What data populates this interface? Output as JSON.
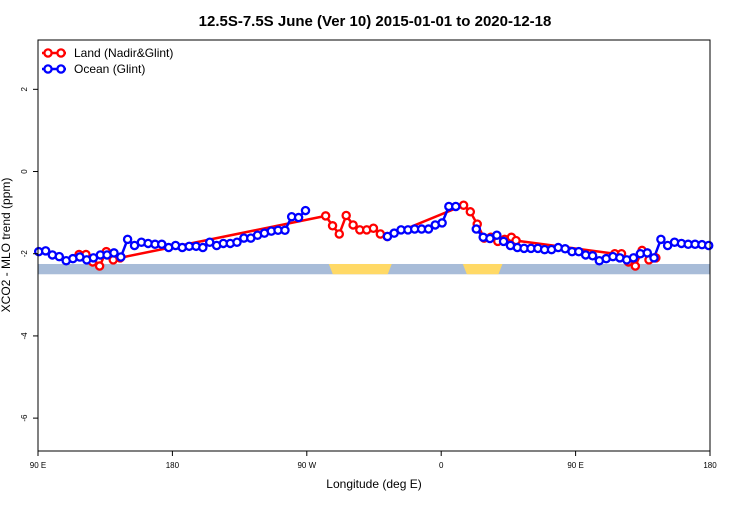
{
  "chart_data": {
    "type": "line",
    "title": "12.5S-7.5S June (Ver 10)   2015-01-01 to 2020-12-18",
    "xlabel": "Longitude (deg E)",
    "ylabel": "XCO2 - MLO trend (ppm)",
    "xlim": [
      90,
      450
    ],
    "ylim": [
      -6.8,
      3.2
    ],
    "x_ticks": [
      {
        "value": 90,
        "label": "90 E"
      },
      {
        "value": 162,
        "label": "180"
      },
      {
        "value": 234,
        "label": "90 W"
      },
      {
        "value": 306,
        "label": "0"
      },
      {
        "value": 378,
        "label": "90 E"
      },
      {
        "value": 450,
        "label": "180"
      }
    ],
    "y_ticks": [
      {
        "value": 2,
        "label": "2"
      },
      {
        "value": 0,
        "label": "0"
      },
      {
        "value": -2,
        "label": "-2"
      },
      {
        "value": -4,
        "label": "-4"
      },
      {
        "value": -6,
        "label": "-6"
      }
    ],
    "grid": false,
    "legend": "top-left",
    "surface_band": {
      "y_top": -2.25,
      "y_bottom": -2.5,
      "ocean_color": "#a8bcd8",
      "land_color": "#ffd966",
      "land_ranges": [
        [
          245.8,
          279.5
        ],
        [
          317.6,
          338.8
        ]
      ]
    },
    "series": [
      {
        "name": "Land (Nadir&Glint)",
        "color": "#ff0000",
        "x": [
          112,
          115.7,
          119.3,
          123,
          126.6,
          130.3,
          134,
          244.1,
          247.8,
          251.4,
          255.1,
          258.8,
          262.4,
          266.1,
          269.7,
          273.4,
          277.1,
          318,
          321.6,
          325.3,
          329,
          332.6,
          336.3,
          340,
          343.6,
          346.1,
          399,
          402.6,
          406.3,
          410,
          413.6,
          417.3,
          421
        ],
        "y": [
          -2.02,
          -2.02,
          -2.2,
          -2.3,
          -1.95,
          -2.15,
          -2.1,
          -1.08,
          -1.32,
          -1.52,
          -1.07,
          -1.3,
          -1.42,
          -1.42,
          -1.38,
          -1.52,
          -1.58,
          -0.82,
          -0.98,
          -1.28,
          -1.62,
          -1.6,
          -1.7,
          -1.65,
          -1.6,
          -1.68,
          -2.0,
          -2.0,
          -2.2,
          -2.3,
          -1.92,
          -2.15,
          -2.1
        ]
      },
      {
        "name": "Ocean (Glint)",
        "color": "#0000ff",
        "x": [
          90.4,
          94.1,
          97.7,
          101.4,
          105.1,
          108.7,
          112.4,
          116.1,
          119.7,
          123.4,
          127,
          130.7,
          134.4,
          138,
          141.7,
          145.4,
          149,
          152.7,
          156.3,
          160,
          163.7,
          167.3,
          171,
          174.7,
          178.3,
          182,
          185.7,
          189.3,
          193,
          196.6,
          200.3,
          204,
          207.6,
          211.3,
          215,
          218.6,
          222.3,
          225.9,
          229.6,
          233.3,
          236.9,
          240.6,
          244.3,
          277.2,
          280.8,
          284.5,
          288.2,
          291.8,
          295.5,
          299.2,
          302.8,
          306.5,
          310.1,
          313.8,
          317.5,
          321.1,
          324.8,
          328.5,
          332.1,
          335.8,
          339.4,
          343.1,
          346.8,
          350.4,
          354.1,
          357.8,
          361.4,
          365.1,
          368.7,
          372.4,
          376.1,
          379.7,
          383.4,
          387.1,
          390.7,
          394.4,
          398,
          401.7,
          405.4,
          409,
          412.7,
          416.4,
          420,
          423.7,
          427.3,
          431,
          434.7,
          438.3,
          442,
          445.7,
          449.3
        ],
        "y": [
          -1.95,
          -1.93,
          -2.03,
          -2.07,
          -2.17,
          -2.12,
          -2.08,
          -2.15,
          -2.1,
          -2.03,
          -2.03,
          -1.98,
          -2.08,
          -1.65,
          -1.8,
          -1.72,
          -1.75,
          -1.77,
          -1.77,
          -1.85,
          -1.8,
          -1.85,
          -1.82,
          -1.82,
          -1.85,
          -1.72,
          -1.8,
          -1.75,
          -1.75,
          -1.72,
          -1.62,
          -1.62,
          -1.55,
          -1.5,
          -1.45,
          -1.43,
          -1.43,
          -1.1,
          -1.12,
          -0.95,
          null,
          null,
          null,
          -1.58,
          -1.5,
          -1.42,
          -1.42,
          -1.4,
          -1.4,
          -1.4,
          -1.3,
          -1.25,
          -0.85,
          -0.85,
          null,
          null,
          -1.4,
          -1.6,
          -1.63,
          -1.55,
          -1.7,
          -1.8,
          -1.85,
          -1.87,
          -1.87,
          -1.87,
          -1.9,
          -1.9,
          -1.85,
          -1.88,
          -1.95,
          -1.95,
          -2.03,
          -2.05,
          -2.17,
          -2.12,
          -2.07,
          -2.1,
          -2.15,
          -2.1,
          -2.0,
          -1.98,
          -2.1,
          -1.65,
          -1.8,
          -1.72,
          -1.75,
          -1.77,
          -1.77,
          -1.78,
          -1.8
        ]
      }
    ]
  }
}
